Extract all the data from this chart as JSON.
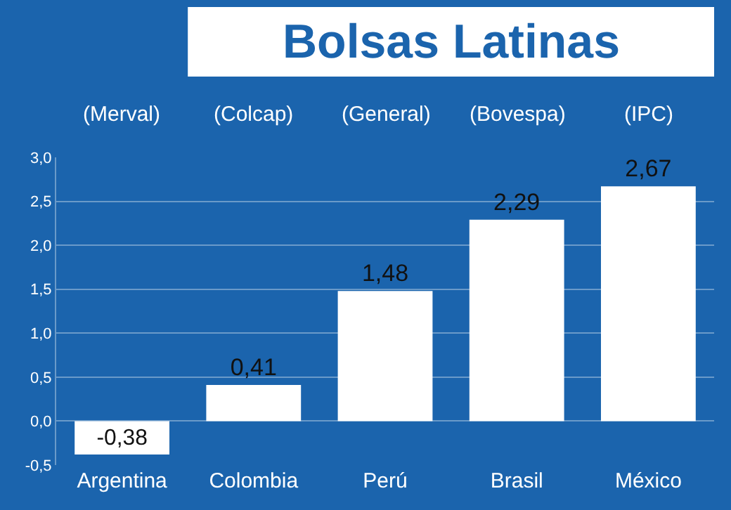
{
  "chart_data": {
    "type": "bar",
    "title": "Bolsas Latinas",
    "categories": [
      "Argentina",
      "Colombia",
      "Perú",
      "Brasil",
      "México"
    ],
    "values": [
      -0.38,
      0.41,
      1.48,
      2.29,
      2.67
    ],
    "value_labels": [
      "-0,38",
      "0,41",
      "1,48",
      "2,29",
      "2,67"
    ],
    "color": "#ffffff",
    "annotations": [
      "(Merval)",
      "(Colcap)",
      "(General)",
      "(Bovespa)",
      "(IPC)"
    ],
    "ylim": [
      -0.5,
      3.0
    ],
    "yticks": [
      {
        "value": -0.5,
        "label": "-0,5"
      },
      {
        "value": 0,
        "label": "0,0"
      },
      {
        "value": 0.5,
        "label": "0,5"
      },
      {
        "value": 1.0,
        "label": "1,0"
      },
      {
        "value": 1.5,
        "label": "1,5"
      },
      {
        "value": 2.0,
        "label": "2,0"
      },
      {
        "value": 2.5,
        "label": "2,5"
      },
      {
        "value": 3.0,
        "label": "3,0"
      }
    ],
    "grid": "y",
    "legend": false
  }
}
